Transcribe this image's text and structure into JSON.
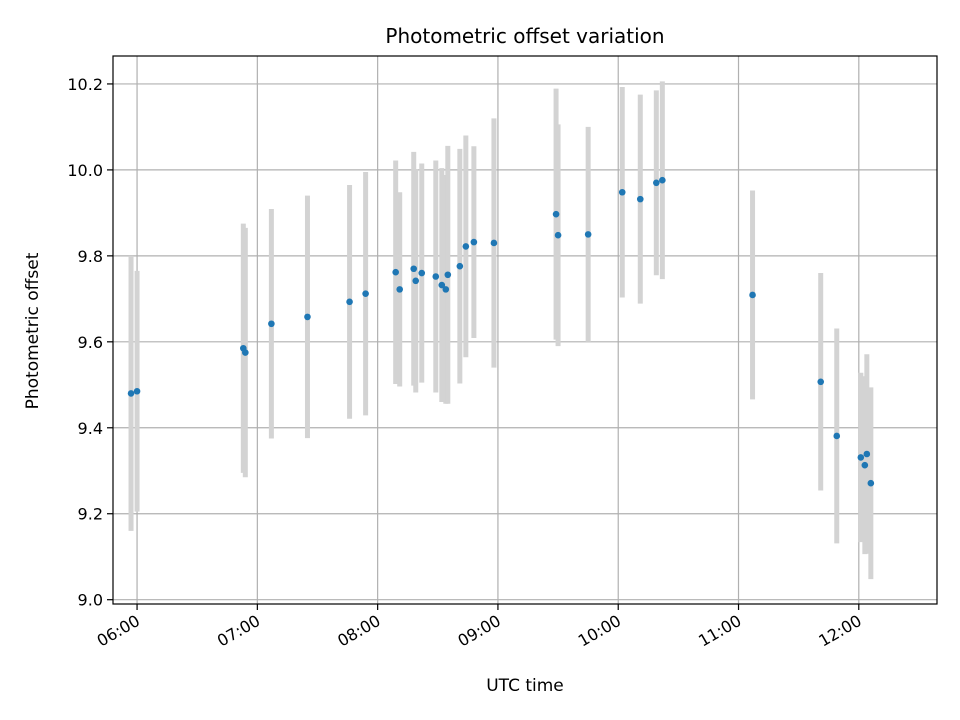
{
  "chart_data": {
    "type": "scatter",
    "title": "Photometric offset variation",
    "xlabel": "UTC time",
    "ylabel": "Photometric offset",
    "x_axis_type": "time",
    "x_ticks": [
      "06:00",
      "07:00",
      "08:00",
      "09:00",
      "10:00",
      "11:00",
      "12:00"
    ],
    "xlim": [
      "05:48",
      "12:39"
    ],
    "y_ticks": [
      9.0,
      9.2,
      9.4,
      9.6,
      9.8,
      10.0,
      10.2
    ],
    "ylim": [
      8.99,
      10.265
    ],
    "grid": true,
    "colors": {
      "point": "#1f77b4",
      "errorbar": "#d3d3d3",
      "grid": "#b0b0b0"
    },
    "points": [
      {
        "time": "05:57",
        "y": 9.48,
        "yerr": 0.32
      },
      {
        "time": "06:00",
        "y": 9.485,
        "yerr": 0.28
      },
      {
        "time": "06:53",
        "y": 9.585,
        "yerr": 0.29
      },
      {
        "time": "06:54",
        "y": 9.575,
        "yerr": 0.29
      },
      {
        "time": "07:07",
        "y": 9.642,
        "yerr": 0.267
      },
      {
        "time": "07:25",
        "y": 9.658,
        "yerr": 0.282
      },
      {
        "time": "07:46",
        "y": 9.693,
        "yerr": 0.272
      },
      {
        "time": "07:54",
        "y": 9.712,
        "yerr": 0.283
      },
      {
        "time": "08:09",
        "y": 9.762,
        "yerr": 0.26
      },
      {
        "time": "08:11",
        "y": 9.722,
        "yerr": 0.226
      },
      {
        "time": "08:18",
        "y": 9.77,
        "yerr": 0.272
      },
      {
        "time": "08:19",
        "y": 9.742,
        "yerr": 0.26
      },
      {
        "time": "08:22",
        "y": 9.76,
        "yerr": 0.255
      },
      {
        "time": "08:29",
        "y": 9.752,
        "yerr": 0.27
      },
      {
        "time": "08:32",
        "y": 9.732,
        "yerr": 0.272
      },
      {
        "time": "08:34",
        "y": 9.722,
        "yerr": 0.266
      },
      {
        "time": "08:35",
        "y": 9.756,
        "yerr": 0.3
      },
      {
        "time": "08:41",
        "y": 9.776,
        "yerr": 0.273
      },
      {
        "time": "08:44",
        "y": 9.822,
        "yerr": 0.258
      },
      {
        "time": "08:48",
        "y": 9.832,
        "yerr": 0.223
      },
      {
        "time": "08:58",
        "y": 9.83,
        "yerr": 0.29
      },
      {
        "time": "09:29",
        "y": 9.897,
        "yerr": 0.292
      },
      {
        "time": "09:30",
        "y": 9.848,
        "yerr": 0.258
      },
      {
        "time": "09:45",
        "y": 9.85,
        "yerr": 0.25
      },
      {
        "time": "10:02",
        "y": 9.948,
        "yerr": 0.245
      },
      {
        "time": "10:11",
        "y": 9.932,
        "yerr": 0.243
      },
      {
        "time": "10:19",
        "y": 9.97,
        "yerr": 0.215
      },
      {
        "time": "10:22",
        "y": 9.976,
        "yerr": 0.23
      },
      {
        "time": "11:07",
        "y": 9.709,
        "yerr": 0.243
      },
      {
        "time": "11:41",
        "y": 9.507,
        "yerr": 0.253
      },
      {
        "time": "11:49",
        "y": 9.381,
        "yerr": 0.25
      },
      {
        "time": "12:01",
        "y": 9.331,
        "yerr": 0.197
      },
      {
        "time": "12:03",
        "y": 9.313,
        "yerr": 0.207
      },
      {
        "time": "12:04",
        "y": 9.339,
        "yerr": 0.232
      },
      {
        "time": "12:06",
        "y": 9.271,
        "yerr": 0.223
      }
    ]
  }
}
